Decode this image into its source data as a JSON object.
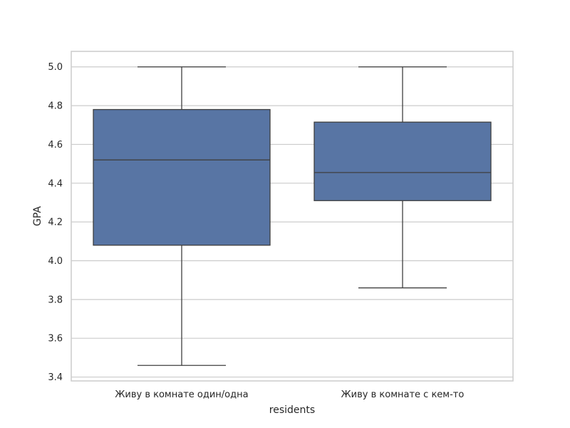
{
  "chart_data": {
    "type": "box",
    "xlabel": "residents",
    "ylabel": "GPA",
    "ylim": [
      3.38,
      5.08
    ],
    "yticks": [
      "3.4",
      "3.6",
      "3.8",
      "4.0",
      "4.2",
      "4.4",
      "4.6",
      "4.8",
      "5.0"
    ],
    "grid": true,
    "categories": [
      "Живу в комнате один/одна",
      "Живу в комнате с кем-то"
    ],
    "boxes": [
      {
        "category": "Живу в комнате один/одна",
        "whisker_low": 3.46,
        "q1": 4.08,
        "median": 4.52,
        "q3": 4.78,
        "whisker_high": 5.0
      },
      {
        "category": "Живу в комнате с кем-то",
        "whisker_low": 3.86,
        "q1": 4.31,
        "median": 4.455,
        "q3": 4.715,
        "whisker_high": 5.0
      }
    ],
    "colors": {
      "box_fill": "#5875a4",
      "line": "#3f3f3f",
      "grid": "#cccccc",
      "frame": "#cccccc",
      "text": "#262626"
    }
  }
}
